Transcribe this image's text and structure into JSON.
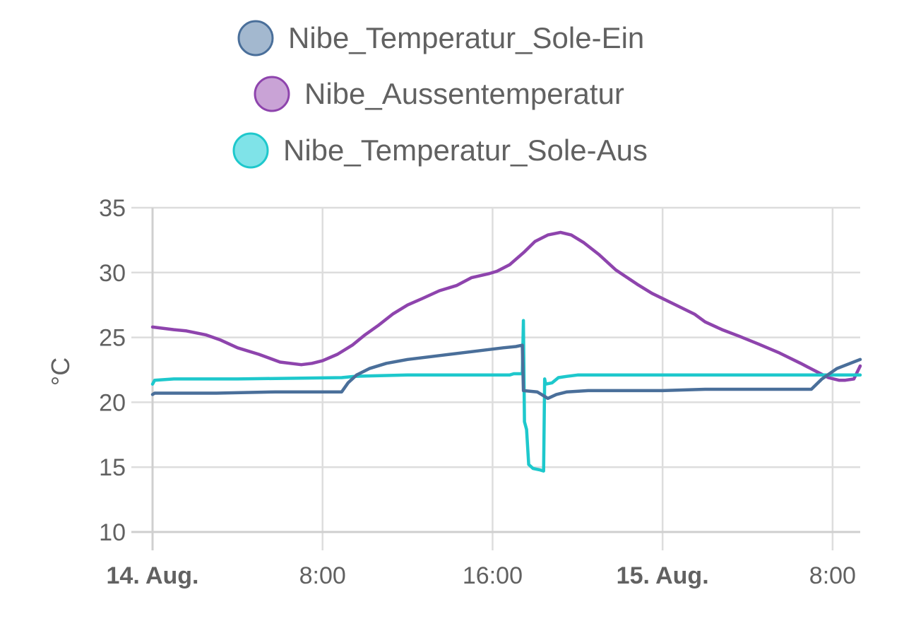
{
  "chart_data": {
    "type": "line",
    "title": "",
    "xlabel": "",
    "ylabel": "°C",
    "ylim": [
      10,
      35
    ],
    "yticks": [
      10,
      15,
      20,
      25,
      30,
      35
    ],
    "xlim_hours": [
      0,
      33.3
    ],
    "xticks": [
      {
        "hour": 0,
        "label": "14. Aug.",
        "bold": true
      },
      {
        "hour": 8,
        "label": "8:00",
        "bold": false
      },
      {
        "hour": 16,
        "label": "16:00",
        "bold": false
      },
      {
        "hour": 24,
        "label": "15. Aug.",
        "bold": true
      },
      {
        "hour": 32,
        "label": "8:00",
        "bold": false
      }
    ],
    "grid": true,
    "legend_position": "top-center",
    "series": [
      {
        "name": "Nibe_Temperatur_Sole-Ein",
        "color": "#4a6f9a",
        "fill": "#a3b8cf",
        "points": [
          [
            0,
            20.6
          ],
          [
            0.1,
            20.7
          ],
          [
            3,
            20.7
          ],
          [
            5.8,
            20.8
          ],
          [
            8.9,
            20.8
          ],
          [
            9.2,
            21.5
          ],
          [
            9.6,
            22.1
          ],
          [
            10.2,
            22.6
          ],
          [
            11,
            23.0
          ],
          [
            12,
            23.3
          ],
          [
            13.5,
            23.6
          ],
          [
            15,
            23.9
          ],
          [
            16.5,
            24.2
          ],
          [
            17.1,
            24.3
          ],
          [
            17.4,
            24.4
          ],
          [
            17.45,
            20.9
          ],
          [
            18.1,
            20.8
          ],
          [
            18.4,
            20.5
          ],
          [
            18.6,
            20.3
          ],
          [
            19.0,
            20.6
          ],
          [
            19.5,
            20.8
          ],
          [
            20.5,
            20.9
          ],
          [
            24,
            20.9
          ],
          [
            26,
            21.0
          ],
          [
            31.0,
            21.0
          ],
          [
            31.5,
            21.8
          ],
          [
            32.2,
            22.6
          ],
          [
            33.3,
            23.3
          ]
        ]
      },
      {
        "name": "Nibe_Aussentemperatur",
        "color": "#8e44ad",
        "fill": "#c9a3d6",
        "points": [
          [
            0,
            25.8
          ],
          [
            1,
            25.6
          ],
          [
            1.6,
            25.5
          ],
          [
            2.5,
            25.2
          ],
          [
            3.2,
            24.8
          ],
          [
            4,
            24.2
          ],
          [
            5,
            23.7
          ],
          [
            6,
            23.1
          ],
          [
            7,
            22.9
          ],
          [
            7.5,
            23.0
          ],
          [
            8,
            23.2
          ],
          [
            8.7,
            23.7
          ],
          [
            9.4,
            24.4
          ],
          [
            10,
            25.2
          ],
          [
            10.6,
            25.9
          ],
          [
            11.3,
            26.8
          ],
          [
            12,
            27.5
          ],
          [
            12.7,
            28.0
          ],
          [
            13.5,
            28.6
          ],
          [
            14.3,
            29.0
          ],
          [
            15,
            29.6
          ],
          [
            15.8,
            29.9
          ],
          [
            16.2,
            30.1
          ],
          [
            16.8,
            30.6
          ],
          [
            17.5,
            31.6
          ],
          [
            18,
            32.4
          ],
          [
            18.6,
            32.9
          ],
          [
            19.2,
            33.1
          ],
          [
            19.7,
            32.9
          ],
          [
            20.3,
            32.3
          ],
          [
            21,
            31.4
          ],
          [
            21.8,
            30.2
          ],
          [
            22.8,
            29.1
          ],
          [
            23.5,
            28.4
          ],
          [
            24.5,
            27.6
          ],
          [
            25.5,
            26.8
          ],
          [
            26,
            26.2
          ],
          [
            26.8,
            25.6
          ],
          [
            27.6,
            25.1
          ],
          [
            28.5,
            24.5
          ],
          [
            29.5,
            23.8
          ],
          [
            30.5,
            23.0
          ],
          [
            31.2,
            22.4
          ],
          [
            31.8,
            21.9
          ],
          [
            32.3,
            21.7
          ],
          [
            32.6,
            21.7
          ],
          [
            33.0,
            21.8
          ],
          [
            33.3,
            22.8
          ]
        ]
      },
      {
        "name": "Nibe_Temperatur_Sole-Aus",
        "color": "#1ec8cc",
        "fill": "#7fe3e8",
        "points": [
          [
            0,
            21.4
          ],
          [
            0.1,
            21.7
          ],
          [
            1,
            21.8
          ],
          [
            4,
            21.8
          ],
          [
            8.9,
            21.9
          ],
          [
            9.5,
            22.0
          ],
          [
            12,
            22.1
          ],
          [
            15,
            22.1
          ],
          [
            16.8,
            22.1
          ],
          [
            17.0,
            22.2
          ],
          [
            17.4,
            22.2
          ],
          [
            17.45,
            26.3
          ],
          [
            17.5,
            18.5
          ],
          [
            17.6,
            17.9
          ],
          [
            17.7,
            15.2
          ],
          [
            17.9,
            14.9
          ],
          [
            18.2,
            14.8
          ],
          [
            18.4,
            14.7
          ],
          [
            18.45,
            21.8
          ],
          [
            18.5,
            21.4
          ],
          [
            18.8,
            21.5
          ],
          [
            19.1,
            21.9
          ],
          [
            19.5,
            22.0
          ],
          [
            20,
            22.1
          ],
          [
            24,
            22.1
          ],
          [
            33.3,
            22.1
          ]
        ]
      }
    ]
  }
}
